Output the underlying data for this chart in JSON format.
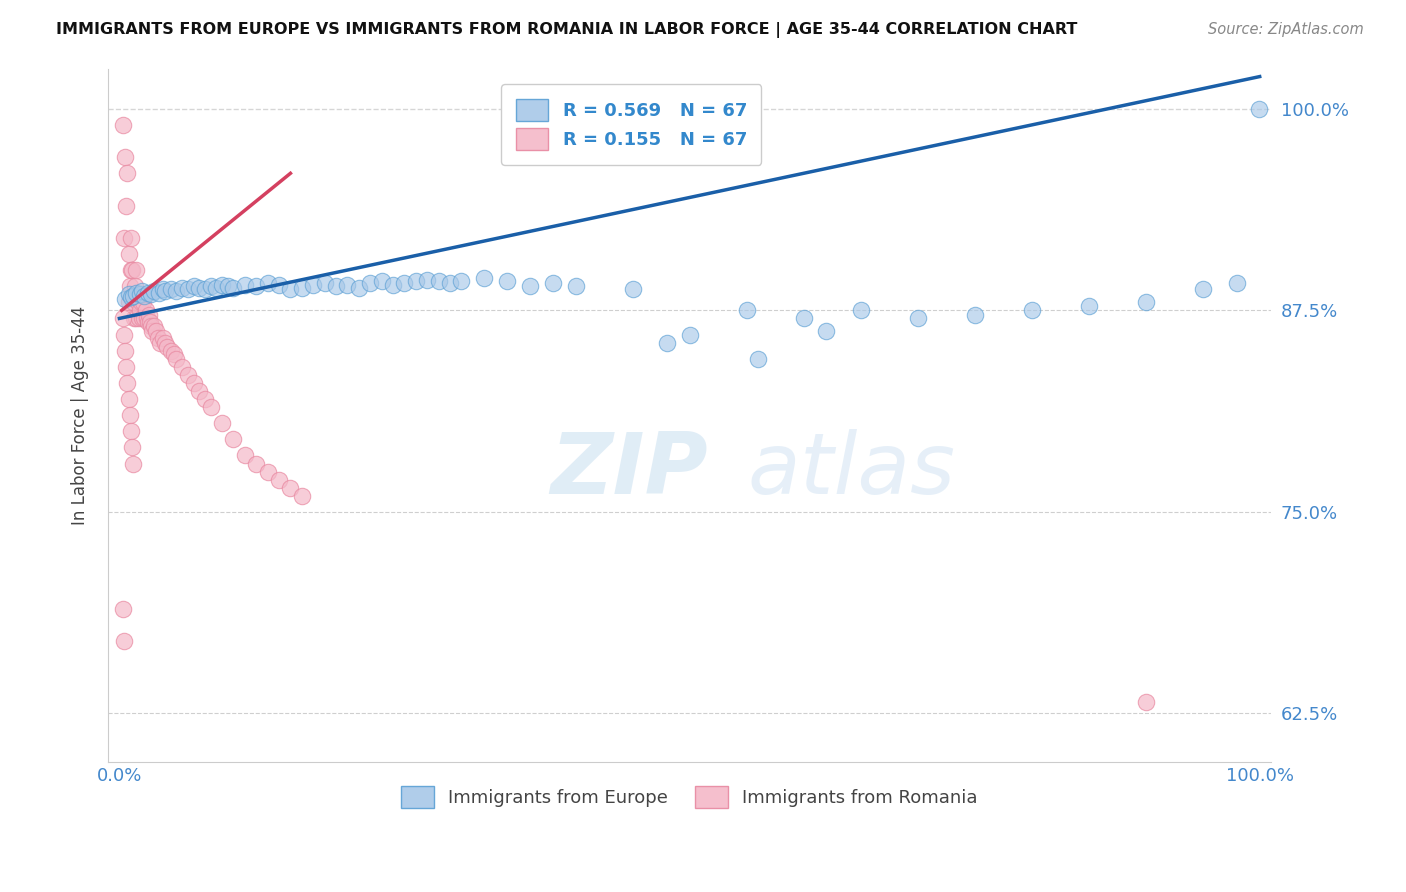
{
  "title": "IMMIGRANTS FROM EUROPE VS IMMIGRANTS FROM ROMANIA IN LABOR FORCE | AGE 35-44 CORRELATION CHART",
  "source": "Source: ZipAtlas.com",
  "ylabel": "In Labor Force | Age 35-44",
  "xlim": [
    -0.01,
    1.01
  ],
  "ylim": [
    0.595,
    1.025
  ],
  "x_ticks": [
    0.0,
    0.25,
    0.5,
    0.75,
    1.0
  ],
  "x_tick_labels": [
    "0.0%",
    "",
    "",
    "",
    "100.0%"
  ],
  "y_ticks": [
    0.625,
    0.75,
    0.875,
    1.0
  ],
  "y_tick_labels": [
    "62.5%",
    "75.0%",
    "87.5%",
    "100.0%"
  ],
  "blue_color": "#a8c8e8",
  "blue_edge_color": "#5a9fd4",
  "pink_color": "#f4b8c8",
  "pink_edge_color": "#e888a0",
  "blue_line_color": "#1a5fa8",
  "pink_line_color": "#d44060",
  "dashed_line_color": "#cccccc",
  "watermark_zip": "ZIP",
  "watermark_atlas": "atlas",
  "legend_blue_R": "R = 0.569",
  "legend_blue_N": "N = 67",
  "legend_pink_R": "R = 0.155",
  "legend_pink_N": "N = 67",
  "legend_blue_label": "Immigrants from Europe",
  "legend_pink_label": "Immigrants from Romania",
  "grid_color": "#bbbbbb",
  "background_color": "#ffffff",
  "blue_x": [
    0.005,
    0.008,
    0.01,
    0.012,
    0.015,
    0.018,
    0.02,
    0.022,
    0.025,
    0.028,
    0.03,
    0.035,
    0.038,
    0.04,
    0.045,
    0.05,
    0.055,
    0.06,
    0.065,
    0.07,
    0.075,
    0.08,
    0.085,
    0.09,
    0.095,
    0.1,
    0.11,
    0.12,
    0.13,
    0.14,
    0.15,
    0.16,
    0.17,
    0.18,
    0.19,
    0.2,
    0.21,
    0.22,
    0.23,
    0.24,
    0.25,
    0.26,
    0.27,
    0.28,
    0.29,
    0.3,
    0.32,
    0.34,
    0.36,
    0.38,
    0.4,
    0.45,
    0.5,
    0.55,
    0.6,
    0.65,
    0.7,
    0.75,
    0.8,
    0.85,
    0.9,
    0.95,
    0.98,
    0.999,
    0.56,
    0.48,
    0.62
  ],
  "blue_y": [
    0.882,
    0.885,
    0.883,
    0.884,
    0.886,
    0.885,
    0.887,
    0.884,
    0.886,
    0.885,
    0.887,
    0.886,
    0.888,
    0.887,
    0.888,
    0.887,
    0.889,
    0.888,
    0.89,
    0.889,
    0.888,
    0.89,
    0.889,
    0.891,
    0.89,
    0.889,
    0.891,
    0.89,
    0.892,
    0.891,
    0.888,
    0.889,
    0.891,
    0.892,
    0.89,
    0.891,
    0.889,
    0.892,
    0.893,
    0.891,
    0.892,
    0.893,
    0.894,
    0.893,
    0.892,
    0.893,
    0.895,
    0.893,
    0.89,
    0.892,
    0.89,
    0.888,
    0.86,
    0.875,
    0.87,
    0.875,
    0.87,
    0.872,
    0.875,
    0.878,
    0.88,
    0.888,
    0.892,
    1.0,
    0.845,
    0.855,
    0.862
  ],
  "pink_x": [
    0.003,
    0.004,
    0.005,
    0.006,
    0.007,
    0.008,
    0.008,
    0.009,
    0.01,
    0.01,
    0.011,
    0.012,
    0.013,
    0.014,
    0.015,
    0.015,
    0.016,
    0.017,
    0.018,
    0.019,
    0.02,
    0.021,
    0.022,
    0.023,
    0.024,
    0.025,
    0.026,
    0.027,
    0.028,
    0.029,
    0.03,
    0.032,
    0.034,
    0.036,
    0.038,
    0.04,
    0.042,
    0.045,
    0.048,
    0.05,
    0.055,
    0.06,
    0.065,
    0.07,
    0.075,
    0.08,
    0.09,
    0.1,
    0.11,
    0.12,
    0.13,
    0.14,
    0.15,
    0.16,
    0.003,
    0.004,
    0.005,
    0.006,
    0.007,
    0.008,
    0.009,
    0.01,
    0.011,
    0.012,
    0.003,
    0.004,
    0.9
  ],
  "pink_y": [
    0.99,
    0.92,
    0.97,
    0.94,
    0.96,
    0.88,
    0.91,
    0.89,
    0.92,
    0.9,
    0.9,
    0.88,
    0.87,
    0.89,
    0.87,
    0.9,
    0.88,
    0.87,
    0.875,
    0.88,
    0.87,
    0.88,
    0.87,
    0.875,
    0.87,
    0.868,
    0.872,
    0.868,
    0.865,
    0.862,
    0.865,
    0.862,
    0.858,
    0.855,
    0.858,
    0.855,
    0.852,
    0.85,
    0.848,
    0.845,
    0.84,
    0.835,
    0.83,
    0.825,
    0.82,
    0.815,
    0.805,
    0.795,
    0.785,
    0.78,
    0.775,
    0.77,
    0.765,
    0.76,
    0.87,
    0.86,
    0.85,
    0.84,
    0.83,
    0.82,
    0.81,
    0.8,
    0.79,
    0.78,
    0.69,
    0.67,
    0.632
  ],
  "pink_trend_x0": 0.002,
  "pink_trend_x1": 0.15,
  "pink_trend_y0": 0.875,
  "pink_trend_y1": 0.96,
  "blue_trend_x0": 0.0,
  "blue_trend_x1": 1.0,
  "blue_trend_y0": 0.87,
  "blue_trend_y1": 1.02
}
